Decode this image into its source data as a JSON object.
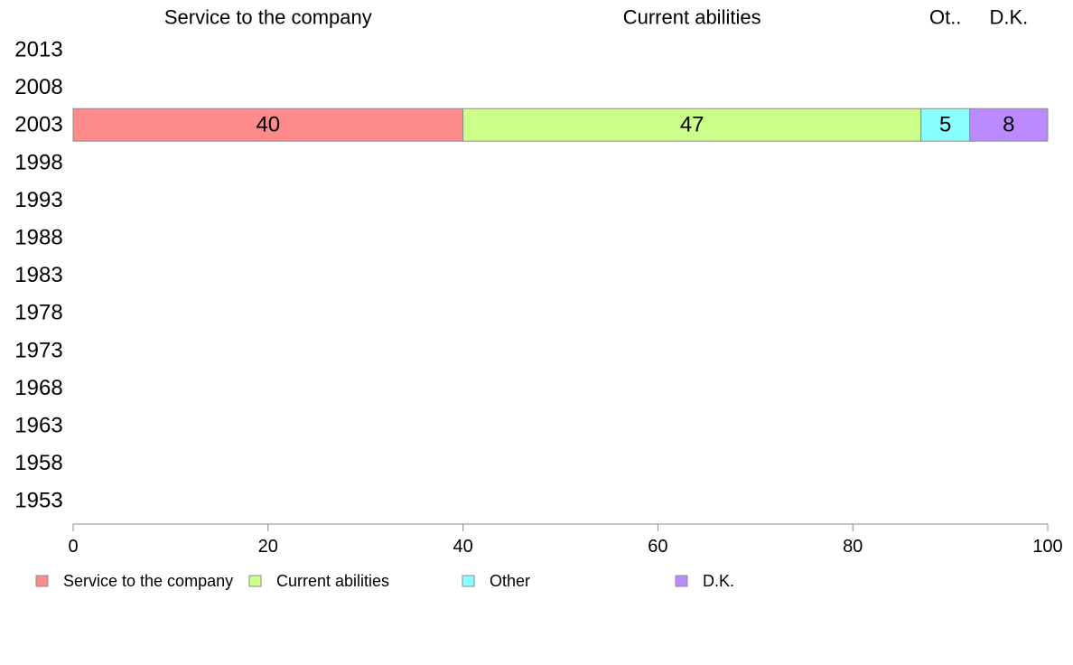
{
  "chart_data": {
    "type": "bar",
    "orientation": "horizontal",
    "stacked": true,
    "categories": [
      "2013",
      "2008",
      "2003",
      "1998",
      "1993",
      "1988",
      "1983",
      "1978",
      "1973",
      "1968",
      "1963",
      "1958",
      "1953"
    ],
    "series": [
      {
        "name": "Service to the company",
        "header": "Service to the company",
        "color": "#ff8a8a",
        "values": [
          null,
          null,
          40,
          null,
          null,
          null,
          null,
          null,
          null,
          null,
          null,
          null,
          null
        ]
      },
      {
        "name": "Current abilities",
        "header": "Current abilities",
        "color": "#ccff8a",
        "values": [
          null,
          null,
          47,
          null,
          null,
          null,
          null,
          null,
          null,
          null,
          null,
          null,
          null
        ]
      },
      {
        "name": "Other",
        "header": "Ot..",
        "color": "#8affff",
        "values": [
          null,
          null,
          5,
          null,
          null,
          null,
          null,
          null,
          null,
          null,
          null,
          null,
          null
        ]
      },
      {
        "name": "D.K.",
        "header": "D.K.",
        "color": "#bb8aff",
        "values": [
          null,
          null,
          8,
          null,
          null,
          null,
          null,
          null,
          null,
          null,
          null,
          null,
          null
        ]
      }
    ],
    "xlim": [
      0,
      100
    ],
    "xticks": [
      "0",
      "20",
      "40",
      "60",
      "80",
      "100"
    ],
    "grid": false,
    "legend_position": "bottom"
  }
}
